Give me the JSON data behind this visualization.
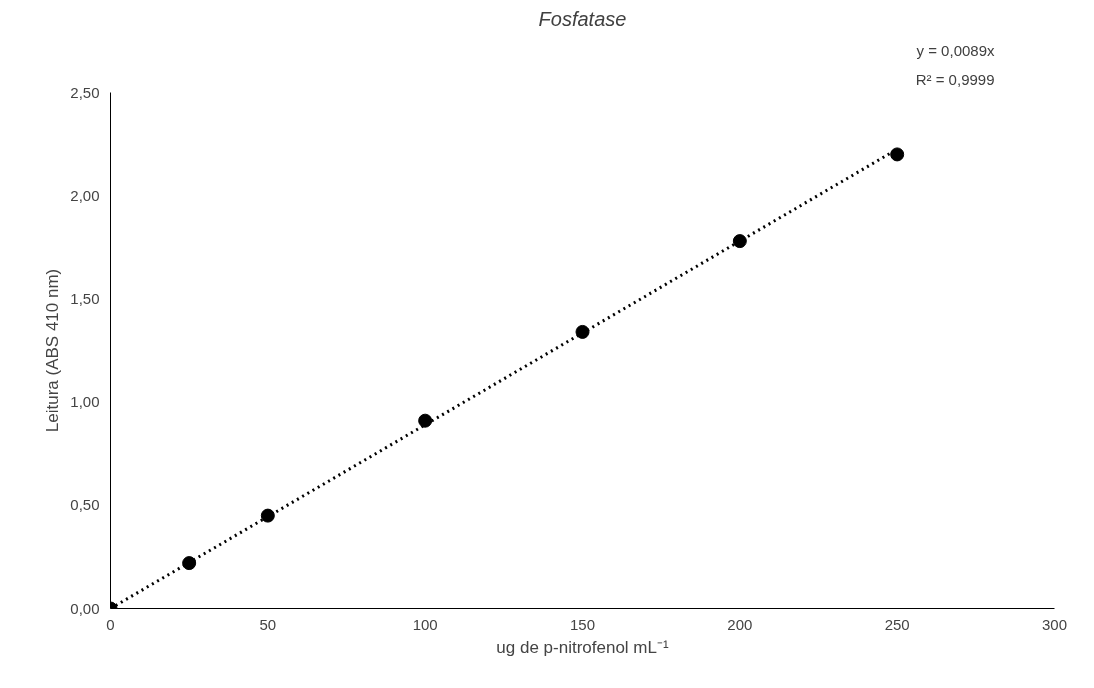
{
  "chart_data": {
    "type": "scatter",
    "title": "Fosfatase",
    "xlabel": "ug de p-nitrofenol mL⁻¹",
    "ylabel": "Leitura (ABS 410 nm)",
    "x": [
      0,
      25,
      50,
      100,
      150,
      200,
      250
    ],
    "series": [
      {
        "color": "#000000",
        "values": [
          0,
          0.22,
          0.45,
          0.91,
          1.34,
          1.78,
          2.2
        ],
        "marker": "circle"
      },
      {
        "type": "line",
        "color": "#000000",
        "x": [
          0,
          250
        ],
        "values": [
          0,
          2.225
        ],
        "line_style": "dotted",
        "marker": "none"
      }
    ],
    "annotations": [
      "y = 0,0089x",
      "R² = 0,9999"
    ],
    "xlim": [
      0,
      300
    ],
    "xticks": [
      0,
      50,
      100,
      150,
      200,
      250,
      300
    ],
    "ylim": [
      0,
      2.5
    ],
    "yticks": [
      {
        "value": 0,
        "label": "0,00"
      },
      {
        "value": 0.5,
        "label": "0,50"
      },
      {
        "value": 1,
        "label": "1,00"
      },
      {
        "value": 1.5,
        "label": "1,50"
      },
      {
        "value": 2,
        "label": "2,00"
      },
      {
        "value": 2.5,
        "label": "2,50"
      }
    ],
    "grid": false,
    "legend": false
  }
}
